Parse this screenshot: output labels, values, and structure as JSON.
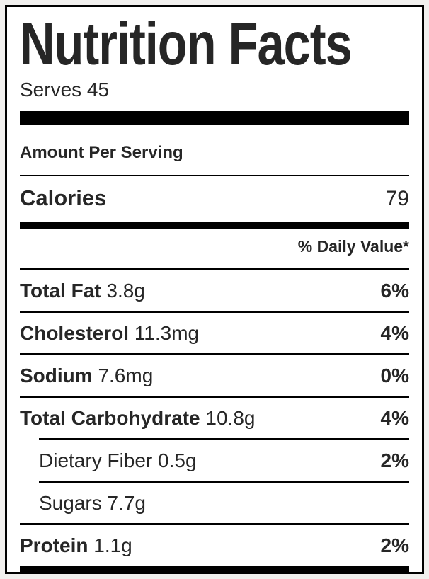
{
  "label": {
    "title": "Nutrition Facts",
    "serving_line": "Serves 45",
    "amount_per_serving": "Amount Per Serving",
    "calories": {
      "name": "Calories",
      "value": "79"
    },
    "daily_value_header": "% Daily Value*",
    "nutrients": [
      {
        "name": "Total Fat",
        "amount": "3.8g",
        "percent": "6%",
        "indent": false
      },
      {
        "name": "Cholesterol",
        "amount": "11.3mg",
        "percent": "4%",
        "indent": false
      },
      {
        "name": "Sodium",
        "amount": "7.6mg",
        "percent": "0%",
        "indent": false
      },
      {
        "name": "Total Carbohydrate",
        "amount": "10.8g",
        "percent": "4%",
        "indent": false
      },
      {
        "name": "Dietary Fiber",
        "amount": "0.5g",
        "percent": "2%",
        "indent": true
      },
      {
        "name": "Sugars",
        "amount": "7.7g",
        "percent": "",
        "indent": true
      },
      {
        "name": "Protein",
        "amount": "1.1g",
        "percent": "2%",
        "indent": false
      }
    ],
    "colors": {
      "text": "#262626",
      "bar": "#000000",
      "label_background": "#ffffff",
      "page_background": "#f1f0ee"
    }
  }
}
